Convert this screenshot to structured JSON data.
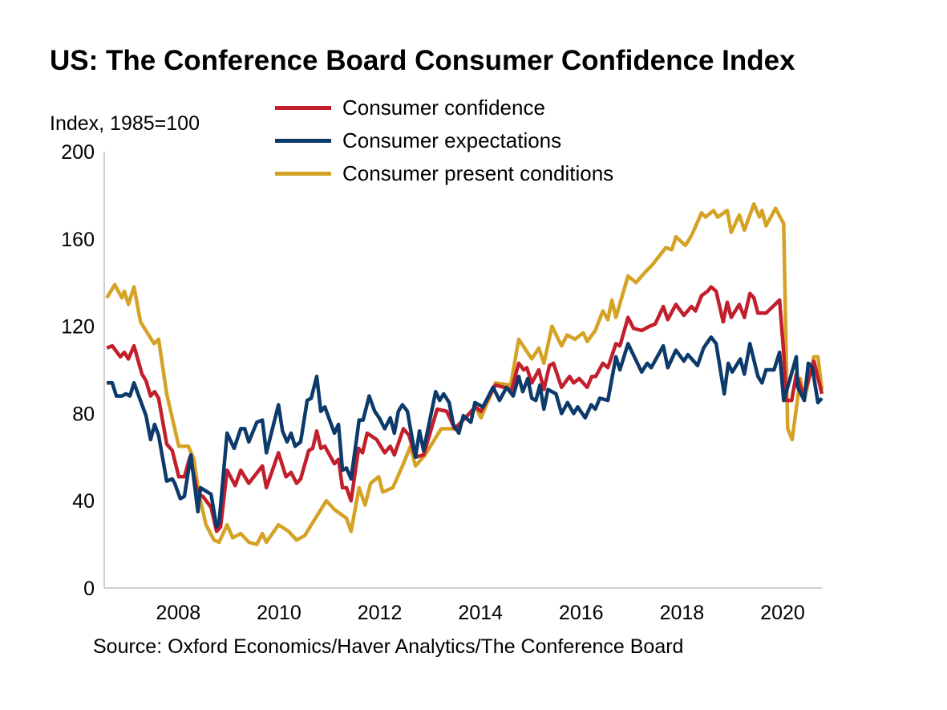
{
  "chart_data": {
    "type": "line",
    "title": "US: The Conference Board Consumer Confidence Index",
    "ylabel": "Index, 1985=100",
    "xlabel": "",
    "source": "Source: Oxford Economics/Haver Analytics/The Conference Board",
    "ylim": [
      0,
      200
    ],
    "xlim": [
      2006.8,
      2021.05
    ],
    "yticks": [
      "0",
      "40",
      "80",
      "120",
      "160",
      "200"
    ],
    "xticks": [
      "2008",
      "2010",
      "2012",
      "2014",
      "2016",
      "2018",
      "2020"
    ],
    "grid": false,
    "legend_position": "top",
    "series": [
      {
        "name": "Consumer confidence",
        "color": "#C21F2C",
        "x": [
          2006.85,
          2006.96,
          2007.12,
          2007.2,
          2007.28,
          2007.39,
          2007.55,
          2007.63,
          2007.72,
          2007.8,
          2007.88,
          2008.04,
          2008.15,
          2008.28,
          2008.39,
          2008.5,
          2008.66,
          2008.76,
          2008.92,
          2009.03,
          2009.11,
          2009.24,
          2009.4,
          2009.51,
          2009.67,
          2009.94,
          2010.02,
          2010.26,
          2010.41,
          2010.51,
          2010.62,
          2010.7,
          2010.86,
          2010.94,
          2011.02,
          2011.1,
          2011.18,
          2011.37,
          2011.45,
          2011.53,
          2011.61,
          2011.7,
          2011.85,
          2011.93,
          2012.02,
          2012.21,
          2012.37,
          2012.48,
          2012.56,
          2012.74,
          2012.85,
          2012.98,
          2013.14,
          2013.41,
          2013.6,
          2013.76,
          2013.97,
          2014.17,
          2014.28,
          2014.57,
          2014.89,
          2015.03,
          2015.13,
          2015.19,
          2015.29,
          2015.43,
          2015.53,
          2015.64,
          2015.72,
          2015.88,
          2016.04,
          2016.12,
          2016.23,
          2016.39,
          2016.48,
          2016.56,
          2016.7,
          2016.8,
          2016.96,
          2017.04,
          2017.2,
          2017.31,
          2017.47,
          2017.63,
          2017.74,
          2017.9,
          2017.99,
          2018.15,
          2018.31,
          2018.46,
          2018.54,
          2018.66,
          2018.78,
          2018.85,
          2018.95,
          2019.09,
          2019.17,
          2019.25,
          2019.41,
          2019.51,
          2019.62,
          2019.7,
          2019.78,
          2019.94,
          2020.21,
          2020.29,
          2020.34,
          2020.45,
          2020.54,
          2020.69,
          2020.89,
          2021.05
        ],
        "values": [
          110,
          111,
          106,
          108,
          105,
          111,
          98,
          95,
          88,
          90,
          87,
          66,
          63,
          51,
          51,
          60,
          43,
          42,
          37,
          26,
          28,
          54,
          47,
          54,
          48,
          56,
          46,
          62,
          51,
          53,
          48,
          50,
          63,
          64,
          72,
          64,
          65,
          57,
          59,
          46,
          46,
          40,
          64,
          62,
          71,
          68,
          62,
          65,
          61,
          73,
          70,
          60,
          61,
          82,
          81,
          73,
          78,
          83,
          81,
          93,
          91,
          103,
          100,
          101,
          94,
          100,
          91,
          102,
          103,
          92,
          97,
          94,
          96,
          92,
          97,
          97,
          103,
          101,
          112,
          111,
          124,
          119,
          118,
          120,
          121,
          129,
          123,
          130,
          125,
          129,
          127,
          134,
          136,
          138,
          136,
          122,
          131,
          124,
          130,
          124,
          135,
          133,
          126,
          126,
          132,
          108,
          86,
          86,
          98,
          88,
          104,
          89
        ]
      },
      {
        "name": "Consumer expectations",
        "color": "#0C3A6B",
        "x": [
          2006.85,
          2006.96,
          2007.04,
          2007.15,
          2007.23,
          2007.31,
          2007.39,
          2007.63,
          2007.72,
          2007.8,
          2007.88,
          2008.04,
          2008.15,
          2008.2,
          2008.31,
          2008.39,
          2008.52,
          2008.66,
          2008.71,
          2008.92,
          2009.03,
          2009.08,
          2009.24,
          2009.38,
          2009.51,
          2009.59,
          2009.67,
          2009.83,
          2009.94,
          2010.02,
          2010.26,
          2010.34,
          2010.43,
          2010.51,
          2010.59,
          2010.7,
          2010.83,
          2010.91,
          2011.02,
          2011.1,
          2011.18,
          2011.37,
          2011.45,
          2011.53,
          2011.61,
          2011.7,
          2011.82,
          2011.86,
          2011.94,
          2012.06,
          2012.17,
          2012.26,
          2012.37,
          2012.48,
          2012.56,
          2012.64,
          2012.72,
          2012.82,
          2012.98,
          2013.06,
          2013.14,
          2013.38,
          2013.46,
          2013.54,
          2013.65,
          2013.73,
          2013.84,
          2013.93,
          2014.08,
          2014.16,
          2014.32,
          2014.52,
          2014.65,
          2014.79,
          2014.92,
          2015.03,
          2015.11,
          2015.21,
          2015.29,
          2015.37,
          2015.45,
          2015.53,
          2015.61,
          2015.77,
          2015.88,
          2016.0,
          2016.12,
          2016.2,
          2016.35,
          2016.47,
          2016.55,
          2016.64,
          2016.8,
          2016.96,
          2017.04,
          2017.2,
          2017.47,
          2017.58,
          2017.66,
          2017.9,
          2017.99,
          2018.15,
          2018.31,
          2018.39,
          2018.58,
          2018.7,
          2018.85,
          2018.95,
          2019.11,
          2019.19,
          2019.27,
          2019.43,
          2019.51,
          2019.62,
          2019.78,
          2019.86,
          2019.94,
          2020.1,
          2020.21,
          2020.29,
          2020.42,
          2020.54,
          2020.57,
          2020.7,
          2020.78,
          2020.86,
          2020.97,
          2021.05
        ],
        "values": [
          94,
          94,
          88,
          88,
          89,
          88,
          94,
          79,
          68,
          75,
          70,
          49,
          50,
          48,
          41,
          42,
          61,
          35,
          46,
          43,
          28,
          30,
          71,
          64,
          73,
          73,
          67,
          76,
          77,
          62,
          84,
          72,
          67,
          71,
          65,
          67,
          86,
          87,
          97,
          81,
          83,
          71,
          75,
          54,
          55,
          50,
          70,
          77,
          77,
          88,
          81,
          78,
          73,
          78,
          71,
          81,
          84,
          81,
          60,
          72,
          63,
          90,
          86,
          89,
          85,
          75,
          71,
          79,
          76,
          85,
          83,
          92,
          86,
          92,
          88,
          97,
          90,
          96,
          87,
          86,
          93,
          82,
          91,
          89,
          80,
          85,
          80,
          83,
          78,
          84,
          82,
          87,
          86,
          106,
          100,
          112,
          99,
          103,
          101,
          111,
          101,
          109,
          104,
          107,
          102,
          110,
          115,
          112,
          89,
          103,
          99,
          105,
          98,
          112,
          97,
          94,
          100,
          100,
          108,
          86,
          96,
          106,
          92,
          86,
          103,
          101,
          85,
          87
        ]
      },
      {
        "name": "Consumer present conditions",
        "color": "#D4A326",
        "x": [
          2006.85,
          2007.01,
          2007.15,
          2007.2,
          2007.28,
          2007.39,
          2007.52,
          2007.79,
          2007.88,
          2008.04,
          2008.28,
          2008.47,
          2008.58,
          2008.68,
          2008.82,
          2008.98,
          2009.08,
          2009.24,
          2009.35,
          2009.51,
          2009.67,
          2009.83,
          2009.94,
          2010.02,
          2010.26,
          2010.46,
          2010.62,
          2010.78,
          2010.94,
          2011.21,
          2011.37,
          2011.61,
          2011.7,
          2011.86,
          2011.98,
          2012.09,
          2012.25,
          2012.33,
          2012.53,
          2012.74,
          2012.88,
          2012.98,
          2013.17,
          2013.49,
          2013.76,
          2013.97,
          2014.17,
          2014.28,
          2014.57,
          2014.87,
          2015.03,
          2015.29,
          2015.43,
          2015.53,
          2015.69,
          2015.88,
          2015.99,
          2016.15,
          2016.31,
          2016.39,
          2016.55,
          2016.7,
          2016.8,
          2016.88,
          2016.96,
          2017.2,
          2017.36,
          2017.55,
          2017.68,
          2017.95,
          2018.07,
          2018.15,
          2018.34,
          2018.47,
          2018.66,
          2018.74,
          2018.9,
          2018.98,
          2019.17,
          2019.25,
          2019.41,
          2019.51,
          2019.7,
          2019.81,
          2019.86,
          2019.94,
          2020.13,
          2020.29,
          2020.37,
          2020.46,
          2020.62,
          2020.7,
          2020.89,
          2020.97,
          2021.05
        ],
        "values": [
          133,
          139,
          133,
          136,
          130,
          138,
          122,
          112,
          114,
          89,
          65,
          65,
          59,
          43,
          29,
          22,
          21,
          29,
          23,
          25,
          21,
          20,
          25,
          21,
          29,
          26,
          22,
          24,
          30,
          40,
          36,
          32,
          26,
          46,
          38,
          48,
          51,
          44,
          46,
          57,
          65,
          56,
          61,
          73,
          73,
          78,
          83,
          78,
          94,
          93,
          114,
          105,
          110,
          103,
          120,
          111,
          116,
          114,
          117,
          113,
          118,
          127,
          123,
          132,
          124,
          143,
          140,
          145,
          148,
          156,
          155,
          161,
          157,
          162,
          172,
          170,
          173,
          170,
          173,
          163,
          171,
          164,
          176,
          170,
          173,
          166,
          174,
          167,
          73,
          68,
          96,
          86,
          106,
          106,
          91
        ]
      }
    ]
  }
}
